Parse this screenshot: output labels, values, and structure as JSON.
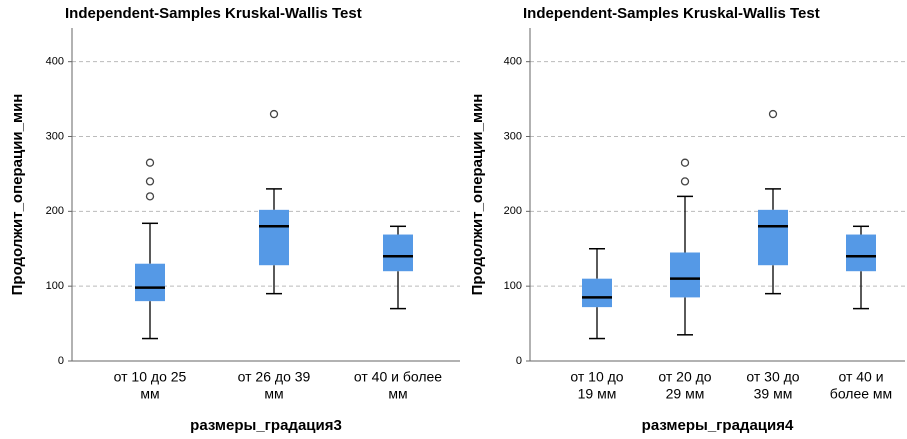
{
  "chart_data": [
    {
      "type": "box",
      "title": "Independent-Samples Kruskal-Wallis Test",
      "y_label": "Продолжит_операции_мин",
      "x_label": "размеры_градация3",
      "categories": [
        [
          "от 10 до 25",
          "мм"
        ],
        [
          "от 26 до 39",
          "мм"
        ],
        [
          "от 40 и более",
          "мм"
        ]
      ],
      "color": "#5599e6",
      "grid": true,
      "ylim": [
        0,
        445
      ],
      "yticks": [
        0,
        100,
        200,
        300,
        400
      ],
      "boxes": [
        {
          "whislo": 30,
          "q1": 80,
          "med": 98,
          "q3": 130,
          "whishi": 184,
          "fliers": [
            220,
            240,
            265
          ]
        },
        {
          "whislo": 90,
          "q1": 128,
          "med": 180,
          "q3": 202,
          "whishi": 230,
          "fliers": [
            330
          ]
        },
        {
          "whislo": 70,
          "q1": 120,
          "med": 140,
          "q3": 169,
          "whishi": 180,
          "fliers": []
        }
      ]
    },
    {
      "type": "box",
      "title": "Independent-Samples Kruskal-Wallis Test",
      "y_label": "Продолжит_операции_мин",
      "x_label": "размеры_градация4",
      "categories": [
        [
          "от 10 до",
          "19 мм"
        ],
        [
          "от 20 до",
          "29 мм"
        ],
        [
          "от 30 до",
          "39 мм"
        ],
        [
          "от 40 и",
          "более мм"
        ]
      ],
      "color": "#5599e6",
      "grid": true,
      "ylim": [
        0,
        445
      ],
      "yticks": [
        0,
        100,
        200,
        300,
        400
      ],
      "boxes": [
        {
          "whislo": 30,
          "q1": 72,
          "med": 85,
          "q3": 110,
          "whishi": 150,
          "fliers": []
        },
        {
          "whislo": 35,
          "q1": 85,
          "med": 110,
          "q3": 145,
          "whishi": 220,
          "fliers": [
            240,
            265
          ]
        },
        {
          "whislo": 90,
          "q1": 128,
          "med": 180,
          "q3": 202,
          "whishi": 230,
          "fliers": [
            330
          ]
        },
        {
          "whislo": 70,
          "q1": 120,
          "med": 140,
          "q3": 169,
          "whishi": 180,
          "fliers": []
        }
      ]
    }
  ]
}
